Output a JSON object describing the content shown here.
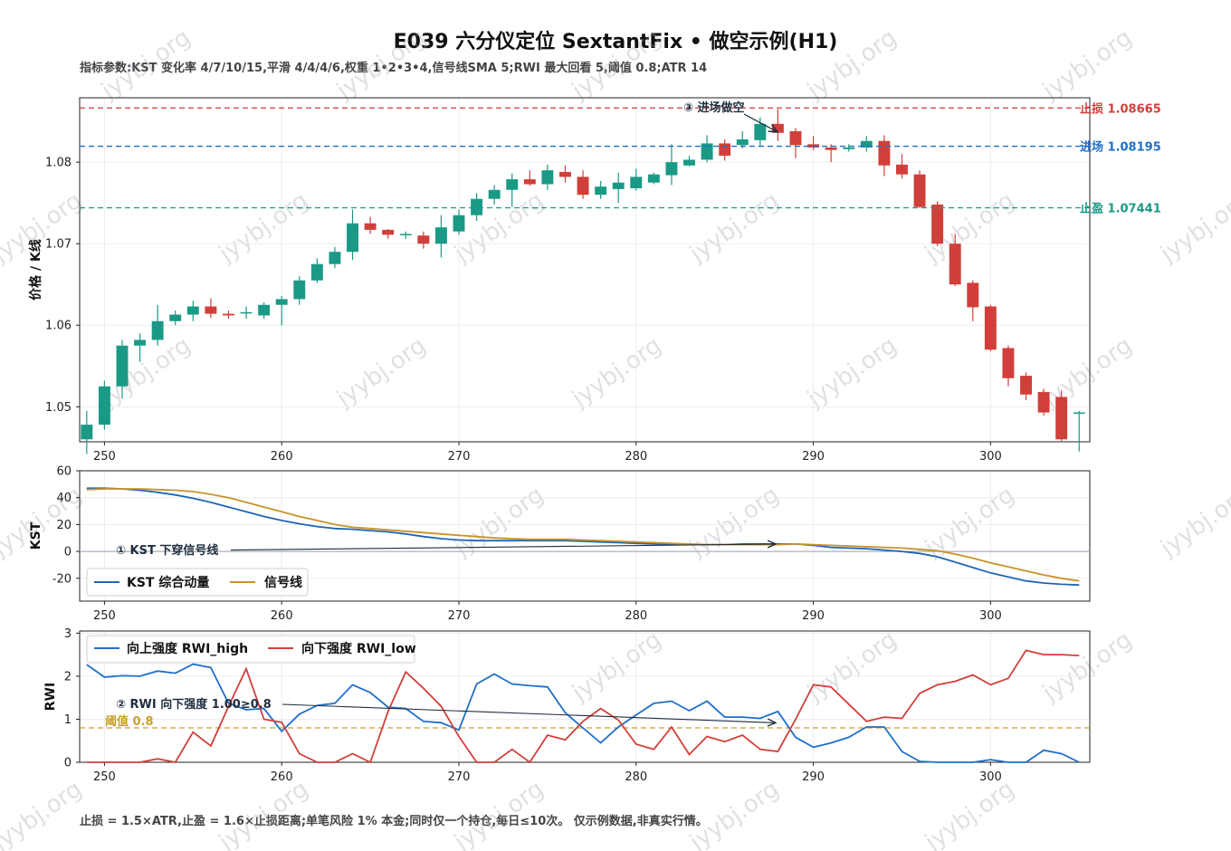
{
  "title": "E039 六分仪定位 SextantFix • 做空示例(H1)",
  "subtitle": "指标参数:KST 变化率 4/7/10/15,平滑 4/4/4/6,权重 1•2•3•4,信号线SMA 5;RWI 最大回看 5,阈值 0.8;ATR 14",
  "footer": "止损 = 1.5×ATR,止盈 = 1.6×止损距离;单笔风险 1% 本金;同时仅一个持仓,每日≤10次。   仅示例数据,非真实行情。",
  "watermark": "jyybj.org",
  "colors": {
    "up": "#1a9a86",
    "down": "#d13f3a",
    "kst": "#1f66b5",
    "signal": "#c9922b",
    "rwi_high": "#1f6fc9",
    "rwi_low": "#d13f3a",
    "stop": "#d13f3a",
    "entry": "#1f6fc9",
    "target": "#1a9a86",
    "threshold": "#c9a02b"
  },
  "chart_data": [
    {
      "type": "candlestick",
      "ylabel": "价格 / K线",
      "x_ticks": [
        250,
        260,
        270,
        280,
        290,
        300
      ],
      "y_ticks": [
        1.05,
        1.06,
        1.07,
        1.08
      ],
      "ylim": [
        1.0457,
        1.0879
      ],
      "xlim": [
        248.6,
        305.6
      ],
      "x": [
        249,
        250,
        251,
        252,
        253,
        254,
        255,
        256,
        257,
        258,
        259,
        260,
        261,
        262,
        263,
        264,
        265,
        266,
        267,
        268,
        269,
        270,
        271,
        272,
        273,
        274,
        275,
        276,
        277,
        278,
        279,
        280,
        281,
        282,
        283,
        284,
        285,
        286,
        287,
        288,
        289,
        290,
        291,
        292,
        293,
        294,
        295,
        296,
        297,
        298,
        299,
        300,
        301,
        302,
        303,
        304,
        305
      ],
      "open": [
        1.046,
        1.0478,
        1.0525,
        1.0575,
        1.0582,
        1.0605,
        1.0613,
        1.0623,
        1.0614,
        1.0616,
        1.0612,
        1.0625,
        1.0632,
        1.0655,
        1.0675,
        1.069,
        1.0725,
        1.0717,
        1.0711,
        1.071,
        1.07,
        1.0715,
        1.0735,
        1.0755,
        1.0766,
        1.0779,
        1.0773,
        1.0788,
        1.0782,
        1.076,
        1.0767,
        1.0768,
        1.0775,
        1.0784,
        1.0796,
        1.0803,
        1.0823,
        1.0821,
        1.0827,
        1.0847,
        1.0838,
        1.0822,
        1.0818,
        1.0816,
        1.0818,
        1.0826,
        1.0797,
        1.0785,
        1.0748,
        1.07,
        1.0652,
        1.0623,
        1.0572,
        1.0538,
        1.0518,
        1.0512,
        1.0493
      ],
      "close": [
        1.0478,
        1.0525,
        1.0575,
        1.0582,
        1.0605,
        1.0613,
        1.0623,
        1.0614,
        1.0612,
        1.0616,
        1.0625,
        1.0632,
        1.0655,
        1.0675,
        1.069,
        1.0725,
        1.0717,
        1.0711,
        1.0712,
        1.07,
        1.072,
        1.0735,
        1.0755,
        1.0766,
        1.0779,
        1.0773,
        1.079,
        1.0782,
        1.076,
        1.077,
        1.0775,
        1.0782,
        1.0785,
        1.08,
        1.0803,
        1.0823,
        1.0808,
        1.0828,
        1.0847,
        1.0836,
        1.0821,
        1.0818,
        1.0815,
        1.0818,
        1.0826,
        1.0796,
        1.0785,
        1.0745,
        1.07,
        1.065,
        1.0622,
        1.057,
        1.0535,
        1.0515,
        1.0493,
        1.046,
        1.0493
      ],
      "high": [
        1.0495,
        1.0532,
        1.0582,
        1.059,
        1.0625,
        1.0618,
        1.063,
        1.0633,
        1.0618,
        1.0623,
        1.0628,
        1.0636,
        1.066,
        1.0682,
        1.0696,
        1.0742,
        1.0733,
        1.0718,
        1.0715,
        1.0715,
        1.0735,
        1.0742,
        1.0762,
        1.0772,
        1.0786,
        1.079,
        1.0797,
        1.0796,
        1.079,
        1.0777,
        1.0787,
        1.0792,
        1.0787,
        1.0822,
        1.0808,
        1.0833,
        1.0828,
        1.0838,
        1.0855,
        1.0865,
        1.0842,
        1.0832,
        1.0822,
        1.0822,
        1.0832,
        1.0833,
        1.081,
        1.079,
        1.0752,
        1.0712,
        1.0655,
        1.0625,
        1.0575,
        1.0542,
        1.0522,
        1.052,
        1.0495
      ],
      "low": [
        1.0442,
        1.0472,
        1.051,
        1.0555,
        1.0575,
        1.06,
        1.0605,
        1.0609,
        1.0608,
        1.0608,
        1.0608,
        1.06,
        1.0625,
        1.0652,
        1.067,
        1.068,
        1.0712,
        1.0706,
        1.0706,
        1.0694,
        1.0683,
        1.0711,
        1.0728,
        1.0748,
        1.0745,
        1.0771,
        1.0766,
        1.0775,
        1.0755,
        1.0755,
        1.075,
        1.0765,
        1.0773,
        1.0772,
        1.0795,
        1.08,
        1.0802,
        1.0817,
        1.082,
        1.0826,
        1.0805,
        1.0815,
        1.08,
        1.0813,
        1.0813,
        1.0783,
        1.078,
        1.0744,
        1.0697,
        1.0648,
        1.0605,
        1.0568,
        1.0525,
        1.0508,
        1.0489,
        1.0458,
        1.0445
      ],
      "levels": [
        {
          "label": "止损 1.08665",
          "value": 1.08665,
          "color_key": "stop"
        },
        {
          "label": "进场 1.08195",
          "value": 1.08195,
          "color_key": "entry"
        },
        {
          "label": "止盈 1.07441",
          "value": 1.07441,
          "color_key": "target"
        }
      ],
      "annotation": {
        "text": "③ 进场做空",
        "point_x": 289,
        "point_y": 1.0837
      }
    },
    {
      "type": "line",
      "ylabel": "KST",
      "x_ticks": [
        250,
        260,
        270,
        280,
        290,
        300
      ],
      "y_ticks": [
        60,
        40,
        20,
        0,
        -20
      ],
      "ylim": [
        -37,
        60
      ],
      "xlim": [
        248.6,
        305.6
      ],
      "x": [
        249,
        250,
        251,
        252,
        253,
        254,
        255,
        256,
        257,
        258,
        259,
        260,
        261,
        262,
        263,
        264,
        265,
        266,
        267,
        268,
        269,
        270,
        271,
        272,
        273,
        274,
        275,
        276,
        277,
        278,
        279,
        280,
        281,
        282,
        283,
        284,
        285,
        286,
        287,
        288,
        289,
        290,
        291,
        292,
        293,
        294,
        295,
        296,
        297,
        298,
        299,
        300,
        301,
        302,
        303,
        304,
        305
      ],
      "series": [
        {
          "name": "KST 综合动量",
          "color_key": "kst",
          "values": [
            47,
            47,
            46.5,
            45.5,
            44,
            42,
            39.5,
            36.5,
            33,
            29.5,
            26,
            23,
            20.5,
            18.5,
            17,
            16.5,
            15.5,
            14.5,
            13,
            11,
            9.5,
            8.5,
            8,
            8,
            8,
            8,
            8,
            8,
            7.5,
            7,
            6.5,
            6,
            5.5,
            5,
            5,
            5,
            5,
            5.5,
            5.5,
            5.5,
            5.5,
            4.5,
            3,
            2.5,
            2,
            1,
            0,
            -1.5,
            -4,
            -8,
            -12,
            -16,
            -19,
            -22,
            -23.5,
            -24.5,
            -25
          ]
        },
        {
          "name": "信号线",
          "color_key": "signal",
          "values": [
            46,
            46.5,
            46.5,
            46.5,
            46,
            45.5,
            44.5,
            42.5,
            40,
            36.5,
            33,
            29.5,
            26,
            23,
            20,
            18,
            17,
            16,
            15,
            14,
            13,
            12,
            11,
            10,
            9.5,
            9,
            9,
            9,
            8.5,
            8,
            7.5,
            7,
            6.5,
            6,
            5.5,
            5,
            5,
            5,
            5,
            5,
            5.5,
            5,
            4.5,
            4,
            3.5,
            3,
            2.5,
            1.5,
            0.5,
            -2,
            -5,
            -8.5,
            -11.5,
            -14.5,
            -17.5,
            -20,
            -22
          ]
        }
      ],
      "annotation": {
        "text": "① KST 下穿信号线",
        "point_x": 289,
        "point_y": 5.5
      }
    },
    {
      "type": "line",
      "ylabel": "RWI",
      "x_ticks": [
        250,
        260,
        270,
        280,
        290,
        300
      ],
      "y_ticks": [
        3,
        2,
        1,
        0
      ],
      "ylim": [
        0,
        3.05
      ],
      "xlim": [
        248.6,
        305.6
      ],
      "threshold": {
        "label": "阈值 0.8",
        "value": 0.8
      },
      "x": [
        249,
        250,
        251,
        252,
        253,
        254,
        255,
        256,
        257,
        258,
        259,
        260,
        261,
        262,
        263,
        264,
        265,
        266,
        267,
        268,
        269,
        270,
        271,
        272,
        273,
        274,
        275,
        276,
        277,
        278,
        279,
        280,
        281,
        282,
        283,
        284,
        285,
        286,
        287,
        288,
        289,
        290,
        291,
        292,
        293,
        294,
        295,
        296,
        297,
        298,
        299,
        300,
        301,
        302,
        303,
        304,
        305
      ],
      "series": [
        {
          "name": "向上强度 RWI_high",
          "color_key": "rwi_high",
          "values": [
            2.27,
            1.98,
            2.01,
            2.0,
            2.12,
            2.07,
            2.28,
            2.2,
            1.37,
            1.22,
            1.25,
            0.72,
            1.12,
            1.32,
            1.37,
            1.8,
            1.62,
            1.28,
            1.25,
            0.95,
            0.92,
            0.75,
            1.82,
            2.05,
            1.82,
            1.78,
            1.75,
            1.15,
            0.8,
            0.45,
            0.82,
            1.1,
            1.37,
            1.42,
            1.2,
            1.42,
            1.05,
            1.05,
            1.02,
            1.18,
            0.58,
            0.35,
            0.45,
            0.58,
            0.82,
            0.82,
            0.25,
            0.02,
            0,
            0,
            0,
            0.06,
            0,
            0,
            0.28,
            0.2,
            0
          ]
        },
        {
          "name": "向下强度 RWI_low",
          "color_key": "rwi_low",
          "values": [
            0,
            0,
            0,
            0,
            0.08,
            0,
            0.7,
            0.38,
            1.3,
            2.17,
            1.0,
            0.93,
            0.2,
            0,
            0,
            0.2,
            0,
            1.18,
            2.1,
            1.72,
            1.3,
            0.6,
            0,
            0,
            0.3,
            0,
            0.63,
            0.52,
            0.95,
            1.25,
            0.98,
            0.42,
            0.3,
            0.82,
            0.18,
            0.6,
            0.48,
            0.63,
            0.3,
            0.25,
            1.0,
            1.8,
            1.75,
            1.35,
            0.95,
            1.05,
            1.02,
            1.6,
            1.8,
            1.88,
            2.03,
            1.8,
            1.95,
            2.6,
            2.5,
            2.5,
            2.48
          ]
        }
      ],
      "annotation": {
        "text": "② RWI 向下强度 1.00≥0.8",
        "point_x": 289,
        "point_y": 0.98
      }
    }
  ]
}
